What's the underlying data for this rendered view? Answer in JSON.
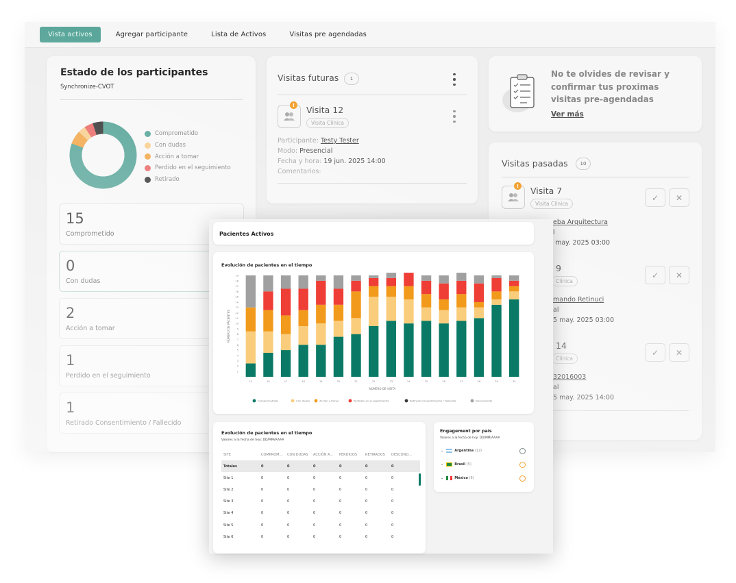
{
  "tabs": [
    "Vista activos",
    "Agregar participante",
    "Lista de Activos",
    "Visitas pre agendadas"
  ],
  "participants_state": {
    "title": "Estado de los participantes",
    "subtitle": "Synchronize-CVOT",
    "legend": [
      {
        "label": "Comprometido",
        "color": "#5aa69a"
      },
      {
        "label": "Con dudas",
        "color": "#f8cf8f"
      },
      {
        "label": "Acción a tomar",
        "color": "#f2a84a"
      },
      {
        "label": "Perdido en el seguimiento",
        "color": "#ea6c6c"
      },
      {
        "label": "Retirado",
        "color": "#3a3a3a"
      }
    ],
    "stats": [
      {
        "value": "15",
        "label": "Comprometido"
      },
      {
        "value": "0",
        "label": "Con dudas"
      },
      {
        "value": "2",
        "label": "Acción a tomar"
      },
      {
        "value": "1",
        "label": "Perdido en el seguimiento"
      },
      {
        "value": "1",
        "label": "Retirado Consentimiento / Fallecido"
      }
    ]
  },
  "future_visits": {
    "title": "Visitas futuras",
    "count": "1",
    "visit": {
      "badge": "!",
      "name": "Visita 12",
      "tag": "Visita Clínica",
      "participant_label": "Participante:",
      "participant_value": "Testy Tester",
      "mode_label": "Modo:",
      "mode_value": "Presencial",
      "datetime_label": "Fecha y hora:",
      "datetime_value": "19 jun. 2025 14:00",
      "comments_label": "Comentarios:"
    }
  },
  "reminder": {
    "text": "No te olvides de revisar y confirmar tus proximas visitas pre-agendadas",
    "link": "Ver más"
  },
  "past_visits": {
    "title": "Visitas pasadas",
    "count": "10",
    "items": [
      {
        "badge": "!",
        "name": "Visita 7",
        "tag": "Visita Clínica",
        "line1": "ueba Arquitectura",
        "line2": "al",
        "line3": "5 may. 2025 03:00"
      },
      {
        "name": "9",
        "tag": "Clínica",
        "line1": "mando Retinuci",
        "line2": "al",
        "line3": "5 may. 2025 03:00"
      },
      {
        "name": "14",
        "tag": "Clínica",
        "line1": "32016003",
        "line2": "al",
        "line3": "5 may. 2025 14:00"
      }
    ]
  },
  "overlay": {
    "header": "Pacientes Activos",
    "chart_title": "Evolución de pacientes en el tiempo",
    "ylabel": "NÚMERO DE PACIENTES",
    "xlabel": "NÚMERO DE VISITA",
    "chart_legend": [
      {
        "label": "Comprometidos",
        "color": "#0a7a66"
      },
      {
        "label": "Con dudas",
        "color": "#f9cd7c"
      },
      {
        "label": "Acción a tomar",
        "color": "#f29a1c"
      },
      {
        "label": "Perdidos en el seguimiento",
        "color": "#ee3e36"
      },
      {
        "label": "Retirado Consentimiento / Fallecido",
        "color": "#3a3a3a"
      },
      {
        "label": "Desconocido",
        "color": "#a0a0a0"
      }
    ],
    "table": {
      "title": "Evolución de pacientes en el tiempo",
      "subtitle": "Valores a la fecha de hoy: DD/MM/AAAA",
      "columns": [
        "SITE",
        "COMPROM...",
        "CON DUDAS",
        "ACCIÓN A...",
        "PERDIDOS",
        "RETIRADOS",
        "DESCONO..."
      ],
      "rows": [
        [
          "Totales",
          "0",
          "0",
          "0",
          "0",
          "0",
          "0"
        ],
        [
          "Site 1",
          "0",
          "0",
          "0",
          "0",
          "0",
          "0"
        ],
        [
          "Site 2",
          "0",
          "0",
          "0",
          "0",
          "0",
          "0"
        ],
        [
          "Site 3",
          "0",
          "0",
          "0",
          "0",
          "0",
          "0"
        ],
        [
          "Site 4",
          "0",
          "0",
          "0",
          "0",
          "0",
          "0"
        ],
        [
          "Site 5",
          "0",
          "0",
          "0",
          "0",
          "0",
          "0"
        ],
        [
          "Site 6",
          "0",
          "0",
          "0",
          "0",
          "0",
          "0"
        ]
      ]
    },
    "engagement": {
      "title": "Engagement por país",
      "subtitle": "Valores a la fecha de hoy: DD/MM/AAAA",
      "countries": [
        {
          "name": "Argentina",
          "count": "(12)",
          "mood": "happy",
          "color": "#7a8a86"
        },
        {
          "name": "Brasil",
          "count": "(5)",
          "mood": "neutral",
          "color": "#f2a333"
        },
        {
          "name": "México",
          "count": "(6)",
          "mood": "sad",
          "color": "#f2a333"
        }
      ]
    }
  },
  "chart_data": {
    "type": "bar",
    "stacked": true,
    "title": "Evolución de pacientes en el tiempo",
    "xlabel": "NÚMERO DE VISITA",
    "ylabel": "NÚMERO DE PACIENTES",
    "categories": [
      "15",
      "16",
      "17",
      "18",
      "19",
      "20",
      "21",
      "22",
      "23",
      "24",
      "25",
      "26",
      "27",
      "28",
      "29",
      "30"
    ],
    "ylim": [
      0,
      19
    ],
    "series": [
      {
        "name": "Comprometidos",
        "color": "#0a7a66",
        "values": [
          2.5,
          4.5,
          5,
          6,
          6,
          7.5,
          8,
          9.5,
          10.5,
          10,
          10.5,
          10,
          10.5,
          11,
          13.5,
          14.5
        ]
      },
      {
        "name": "Con dudas",
        "color": "#f9cd7c",
        "values": [
          6,
          4,
          3,
          3.5,
          4,
          3,
          3,
          5.5,
          4.5,
          4.5,
          2.5,
          2.5,
          2.5,
          2,
          1,
          1.5
        ]
      },
      {
        "name": "Acción a tomar",
        "color": "#f29a1c",
        "values": [
          4.5,
          4,
          3.5,
          3,
          3.5,
          3,
          5,
          2,
          2,
          2.5,
          2.5,
          2,
          2.5,
          1,
          1.5,
          1
        ]
      },
      {
        "name": "Perdidos en el seguimiento",
        "color": "#ee3e36",
        "values": [
          0,
          3.5,
          5,
          4,
          4.5,
          3,
          2,
          1.5,
          1.5,
          2.5,
          2.5,
          3,
          2.5,
          3.5,
          2.5,
          1
        ]
      },
      {
        "name": "Retirado Consentimiento / Fallecido",
        "color": "#3a3a3a",
        "values": [
          0,
          0,
          0,
          0,
          0,
          0,
          0,
          0,
          0,
          0,
          0,
          0,
          0,
          0,
          0,
          0
        ]
      },
      {
        "name": "Desconocido",
        "color": "#a0a0a0",
        "values": [
          6,
          3,
          2.5,
          2.5,
          1,
          2.5,
          1,
          0.5,
          1,
          0,
          1,
          1.5,
          1.5,
          1.5,
          0.5,
          1
        ]
      }
    ],
    "ytick_labels": [
      "1",
      "2",
      "3",
      "4",
      "5",
      "6",
      "7",
      "8",
      "9",
      "10",
      "11",
      "12",
      "13",
      "14",
      "15",
      "16",
      "17",
      "18",
      "19"
    ],
    "legend": "bottom"
  }
}
